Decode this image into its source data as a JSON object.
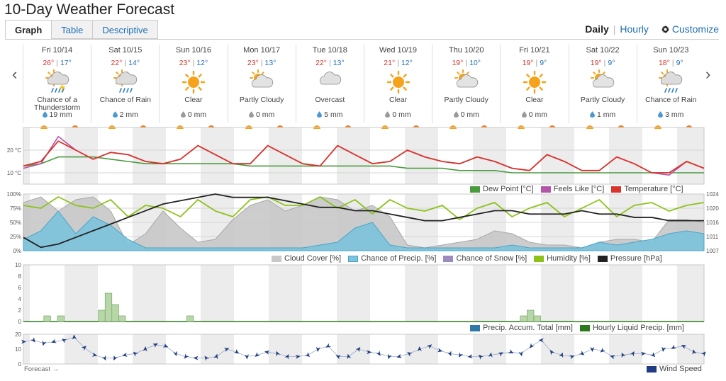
{
  "page": {
    "title": "10-Day Weather Forecast"
  },
  "tabs": [
    {
      "label": "Graph",
      "active": true
    },
    {
      "label": "Table",
      "active": false
    },
    {
      "label": "Descriptive",
      "active": false
    }
  ],
  "view_controls": {
    "daily": "Daily",
    "hourly": "Hourly",
    "customize": "Customize",
    "separator": "|"
  },
  "nav": {
    "prev": "‹",
    "next": "›"
  },
  "days": [
    {
      "name": "Fri 10/14",
      "hi": "26°",
      "lo": "17°",
      "icon": "thunderstorm-icon",
      "condition": "Chance of a Thunderstorm",
      "precip": "19 mm",
      "drop": "blue"
    },
    {
      "name": "Sat 10/15",
      "hi": "22°",
      "lo": "14°",
      "icon": "rain-icon",
      "condition": "Chance of Rain",
      "precip": "2 mm",
      "drop": "blue"
    },
    {
      "name": "Sun 10/16",
      "hi": "23°",
      "lo": "12°",
      "icon": "sun-icon",
      "condition": "Clear",
      "precip": "0 mm",
      "drop": "grey"
    },
    {
      "name": "Mon 10/17",
      "hi": "23°",
      "lo": "13°",
      "icon": "partly-cloudy-icon",
      "condition": "Partly Cloudy",
      "precip": "0 mm",
      "drop": "grey"
    },
    {
      "name": "Tue 10/18",
      "hi": "22°",
      "lo": "13°",
      "icon": "cloud-icon",
      "condition": "Overcast",
      "precip": "5 mm",
      "drop": "blue"
    },
    {
      "name": "Wed 10/19",
      "hi": "21°",
      "lo": "12°",
      "icon": "sun-icon",
      "condition": "Clear",
      "precip": "0 mm",
      "drop": "grey"
    },
    {
      "name": "Thu 10/20",
      "hi": "19°",
      "lo": "10°",
      "icon": "partly-cloudy-icon",
      "condition": "Partly Cloudy",
      "precip": "0 mm",
      "drop": "grey"
    },
    {
      "name": "Fri 10/21",
      "hi": "19°",
      "lo": "9°",
      "icon": "sun-icon",
      "condition": "Clear",
      "precip": "0 mm",
      "drop": "grey"
    },
    {
      "name": "Sat 10/22",
      "hi": "19°",
      "lo": "9°",
      "icon": "partly-cloudy-icon",
      "condition": "Partly Cloudy",
      "precip": "1 mm",
      "drop": "blue"
    },
    {
      "name": "Sun 10/23",
      "hi": "18°",
      "lo": "9°",
      "icon": "rain-icon",
      "condition": "Chance of Rain",
      "precip": "3 mm",
      "drop": "blue"
    }
  ],
  "colors": {
    "temperature": "#d9342b",
    "feels_like": "#b454a8",
    "dew_point": "#4a9a3e",
    "cloud_cover": "#c8c8c8",
    "precip_chance": "#7cc3dc",
    "snow_chance": "#9c8ac0",
    "humidity": "#8cc21a",
    "pressure": "#222222",
    "precip_accum": "#2f79a8",
    "liquid_precip": "#2d7a1d",
    "wind": "#1f3d80",
    "night_band": "#ececec"
  },
  "legends": {
    "temp": [
      "Dew Point [°C]",
      "Feels Like [°C]",
      "Temperature [°C]"
    ],
    "cloud": [
      "Cloud Cover [%]",
      "Chance of Precip. [%]",
      "Chance of Snow [%]",
      "Humidity [%]",
      "Pressure [hPa]"
    ],
    "precip": [
      "Precip. Accum. Total [mm]",
      "Hourly Liquid Precip. [mm]"
    ],
    "wind": [
      "Wind Speed"
    ]
  },
  "forecast_note": "Forecast →",
  "chart_data": [
    {
      "type": "line",
      "x": [
        0,
        6,
        12,
        18,
        24,
        30,
        36,
        42,
        48,
        54,
        60,
        66,
        72,
        78,
        84,
        90,
        96,
        102,
        108,
        114,
        120,
        126,
        132,
        138,
        144,
        150,
        156,
        162,
        168,
        174,
        180,
        186,
        192,
        198,
        204,
        210,
        216,
        222,
        228,
        234
      ],
      "series": [
        {
          "name": "Temperature [°C]",
          "values": [
            13,
            15,
            24,
            20,
            16,
            19,
            18,
            15,
            14,
            16,
            22,
            18,
            14,
            14,
            22,
            18,
            14,
            13,
            22,
            18,
            14,
            15,
            20,
            17,
            15,
            14,
            17,
            15,
            12,
            11,
            18,
            15,
            11,
            11,
            17,
            14,
            10,
            10,
            15,
            12
          ]
        },
        {
          "name": "Feels Like [°C]",
          "values": [
            12,
            14,
            26,
            20,
            16,
            19,
            18,
            15,
            14,
            16,
            22,
            18,
            14,
            14,
            22,
            18,
            14,
            13,
            22,
            18,
            14,
            15,
            20,
            17,
            15,
            14,
            17,
            15,
            12,
            11,
            18,
            15,
            11,
            11,
            17,
            14,
            10,
            9,
            15,
            12
          ]
        },
        {
          "name": "Dew Point [°C]",
          "values": [
            13,
            14,
            17,
            17,
            17,
            16,
            15,
            14,
            14,
            14,
            14,
            14,
            14,
            13,
            13,
            13,
            13,
            13,
            13,
            13,
            13,
            13,
            12,
            12,
            12,
            11,
            11,
            11,
            10,
            10,
            10,
            10,
            10,
            10,
            10,
            10,
            10,
            10,
            10,
            10
          ]
        }
      ],
      "yticks": [
        "20 °C",
        "10 °C"
      ]
    },
    {
      "type": "area",
      "x": [
        0,
        6,
        12,
        18,
        24,
        30,
        36,
        42,
        48,
        54,
        60,
        66,
        72,
        78,
        84,
        90,
        96,
        102,
        108,
        114,
        120,
        126,
        132,
        138,
        144,
        150,
        156,
        162,
        168,
        174,
        180,
        186,
        192,
        198,
        204,
        210,
        216,
        222,
        228,
        234
      ],
      "series": [
        {
          "name": "Cloud Cover [%]",
          "values": [
            85,
            95,
            70,
            90,
            95,
            70,
            10,
            30,
            70,
            40,
            15,
            20,
            55,
            80,
            90,
            70,
            80,
            95,
            90,
            70,
            80,
            60,
            10,
            5,
            10,
            15,
            20,
            35,
            30,
            15,
            10,
            10,
            5,
            15,
            20,
            20,
            15,
            55,
            55,
            50
          ]
        },
        {
          "name": "Chance of Precip. [%]",
          "values": [
            20,
            35,
            70,
            30,
            60,
            45,
            20,
            5,
            5,
            5,
            5,
            5,
            5,
            5,
            5,
            5,
            5,
            10,
            15,
            40,
            50,
            10,
            5,
            5,
            5,
            5,
            5,
            5,
            10,
            5,
            5,
            5,
            5,
            15,
            10,
            15,
            20,
            30,
            35,
            30
          ]
        },
        {
          "name": "Humidity [%]",
          "values": [
            80,
            75,
            95,
            80,
            75,
            90,
            60,
            80,
            75,
            60,
            90,
            70,
            60,
            90,
            95,
            80,
            80,
            95,
            75,
            90,
            65,
            90,
            75,
            70,
            80,
            55,
            75,
            85,
            60,
            75,
            85,
            60,
            75,
            90,
            60,
            80,
            85,
            70,
            80,
            85
          ]
        },
        {
          "name": "Pressure [hPa]",
          "values": [
            1011,
            1008,
            1009,
            1011,
            1013,
            1015,
            1017,
            1019,
            1021,
            1022,
            1023,
            1024,
            1023,
            1023,
            1023,
            1022,
            1021,
            1020,
            1020,
            1019,
            1019,
            1018,
            1017,
            1016,
            1016,
            1017,
            1018,
            1019,
            1019,
            1018,
            1018,
            1018,
            1019,
            1018,
            1018,
            1017,
            1017,
            1016,
            1016,
            1016
          ]
        }
      ],
      "yticks_left": [
        "100%",
        "75%",
        "50%",
        "25%",
        "0%"
      ],
      "yticks_right": [
        "1024",
        "1020",
        "1016",
        "1011",
        "1007"
      ]
    },
    {
      "type": "bar",
      "series": [
        {
          "name": "Hourly Liquid Precip. [mm]",
          "points": [
            [
              3,
              1
            ],
            [
              5,
              1
            ],
            [
              11,
              2
            ],
            [
              12,
              5
            ],
            [
              13,
              3
            ],
            [
              14,
              1
            ],
            [
              24,
              1
            ],
            [
              73,
              1
            ],
            [
              74,
              2
            ],
            [
              75,
              1
            ]
          ]
        }
      ],
      "yticks": [
        "10",
        "8",
        "6",
        "4",
        "2",
        "0"
      ],
      "ylim": [
        0,
        10
      ]
    },
    {
      "type": "line",
      "series": [
        {
          "name": "Wind Speed",
          "values": [
            15,
            16,
            14,
            15,
            16,
            18,
            11,
            6,
            4,
            4,
            6,
            7,
            10,
            13,
            12,
            7,
            5,
            4,
            4,
            5,
            10,
            8,
            5,
            6,
            8,
            7,
            5,
            5,
            6,
            10,
            12,
            5,
            5,
            10,
            8,
            7,
            5,
            5,
            7,
            10,
            12,
            9,
            7,
            6,
            5,
            5,
            6,
            7,
            8,
            7,
            12,
            16,
            8,
            6,
            5,
            7,
            10,
            9,
            5,
            6,
            7,
            7,
            6,
            10,
            11,
            12,
            8,
            7
          ]
        }
      ],
      "yticks": [
        "20",
        "10",
        "0"
      ]
    }
  ]
}
